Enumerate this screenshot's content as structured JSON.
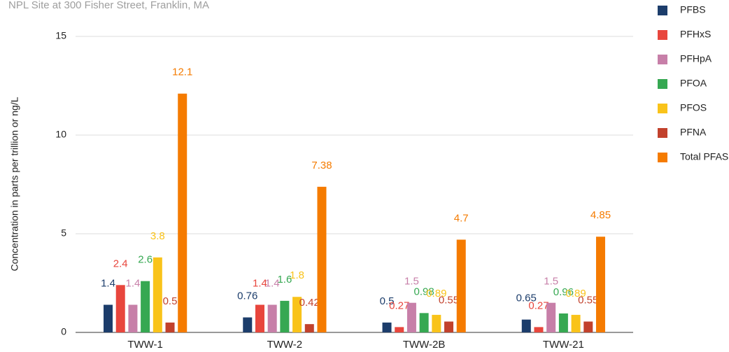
{
  "chart_data": {
    "type": "bar",
    "subtitle": "NPL Site at 300 Fisher Street, Franklin, MA",
    "y_label": "Concentration in parts per trillion or ng/L",
    "categories": [
      "TWW-1",
      "TWW-2",
      "TWW-2B",
      "TWW-21"
    ],
    "series": [
      {
        "name": "PFBS",
        "color": "#1c3d6b",
        "values": [
          1.4,
          0.76,
          0.5,
          0.65
        ]
      },
      {
        "name": "PFHxS",
        "color": "#e8463d",
        "values": [
          2.4,
          1.4,
          0.27,
          0.27
        ]
      },
      {
        "name": "PFHpA",
        "color": "#c77fa8",
        "values": [
          1.4,
          1.4,
          1.5,
          1.5
        ]
      },
      {
        "name": "PFOA",
        "color": "#36a852",
        "values": [
          2.6,
          1.6,
          0.98,
          0.96
        ]
      },
      {
        "name": "PFOS",
        "color": "#f9c31a",
        "values": [
          3.8,
          1.8,
          0.89,
          0.89
        ]
      },
      {
        "name": "PFNA",
        "color": "#c2412c",
        "values": [
          0.5,
          0.42,
          0.55,
          0.55
        ]
      },
      {
        "name": "Total PFAS",
        "color": "#f57b00",
        "values": [
          12.1,
          7.38,
          4.7,
          4.85
        ]
      }
    ],
    "ylim": [
      0,
      15
    ],
    "yticks": [
      0,
      5,
      10,
      15
    ],
    "grid": true,
    "legend": "right"
  }
}
